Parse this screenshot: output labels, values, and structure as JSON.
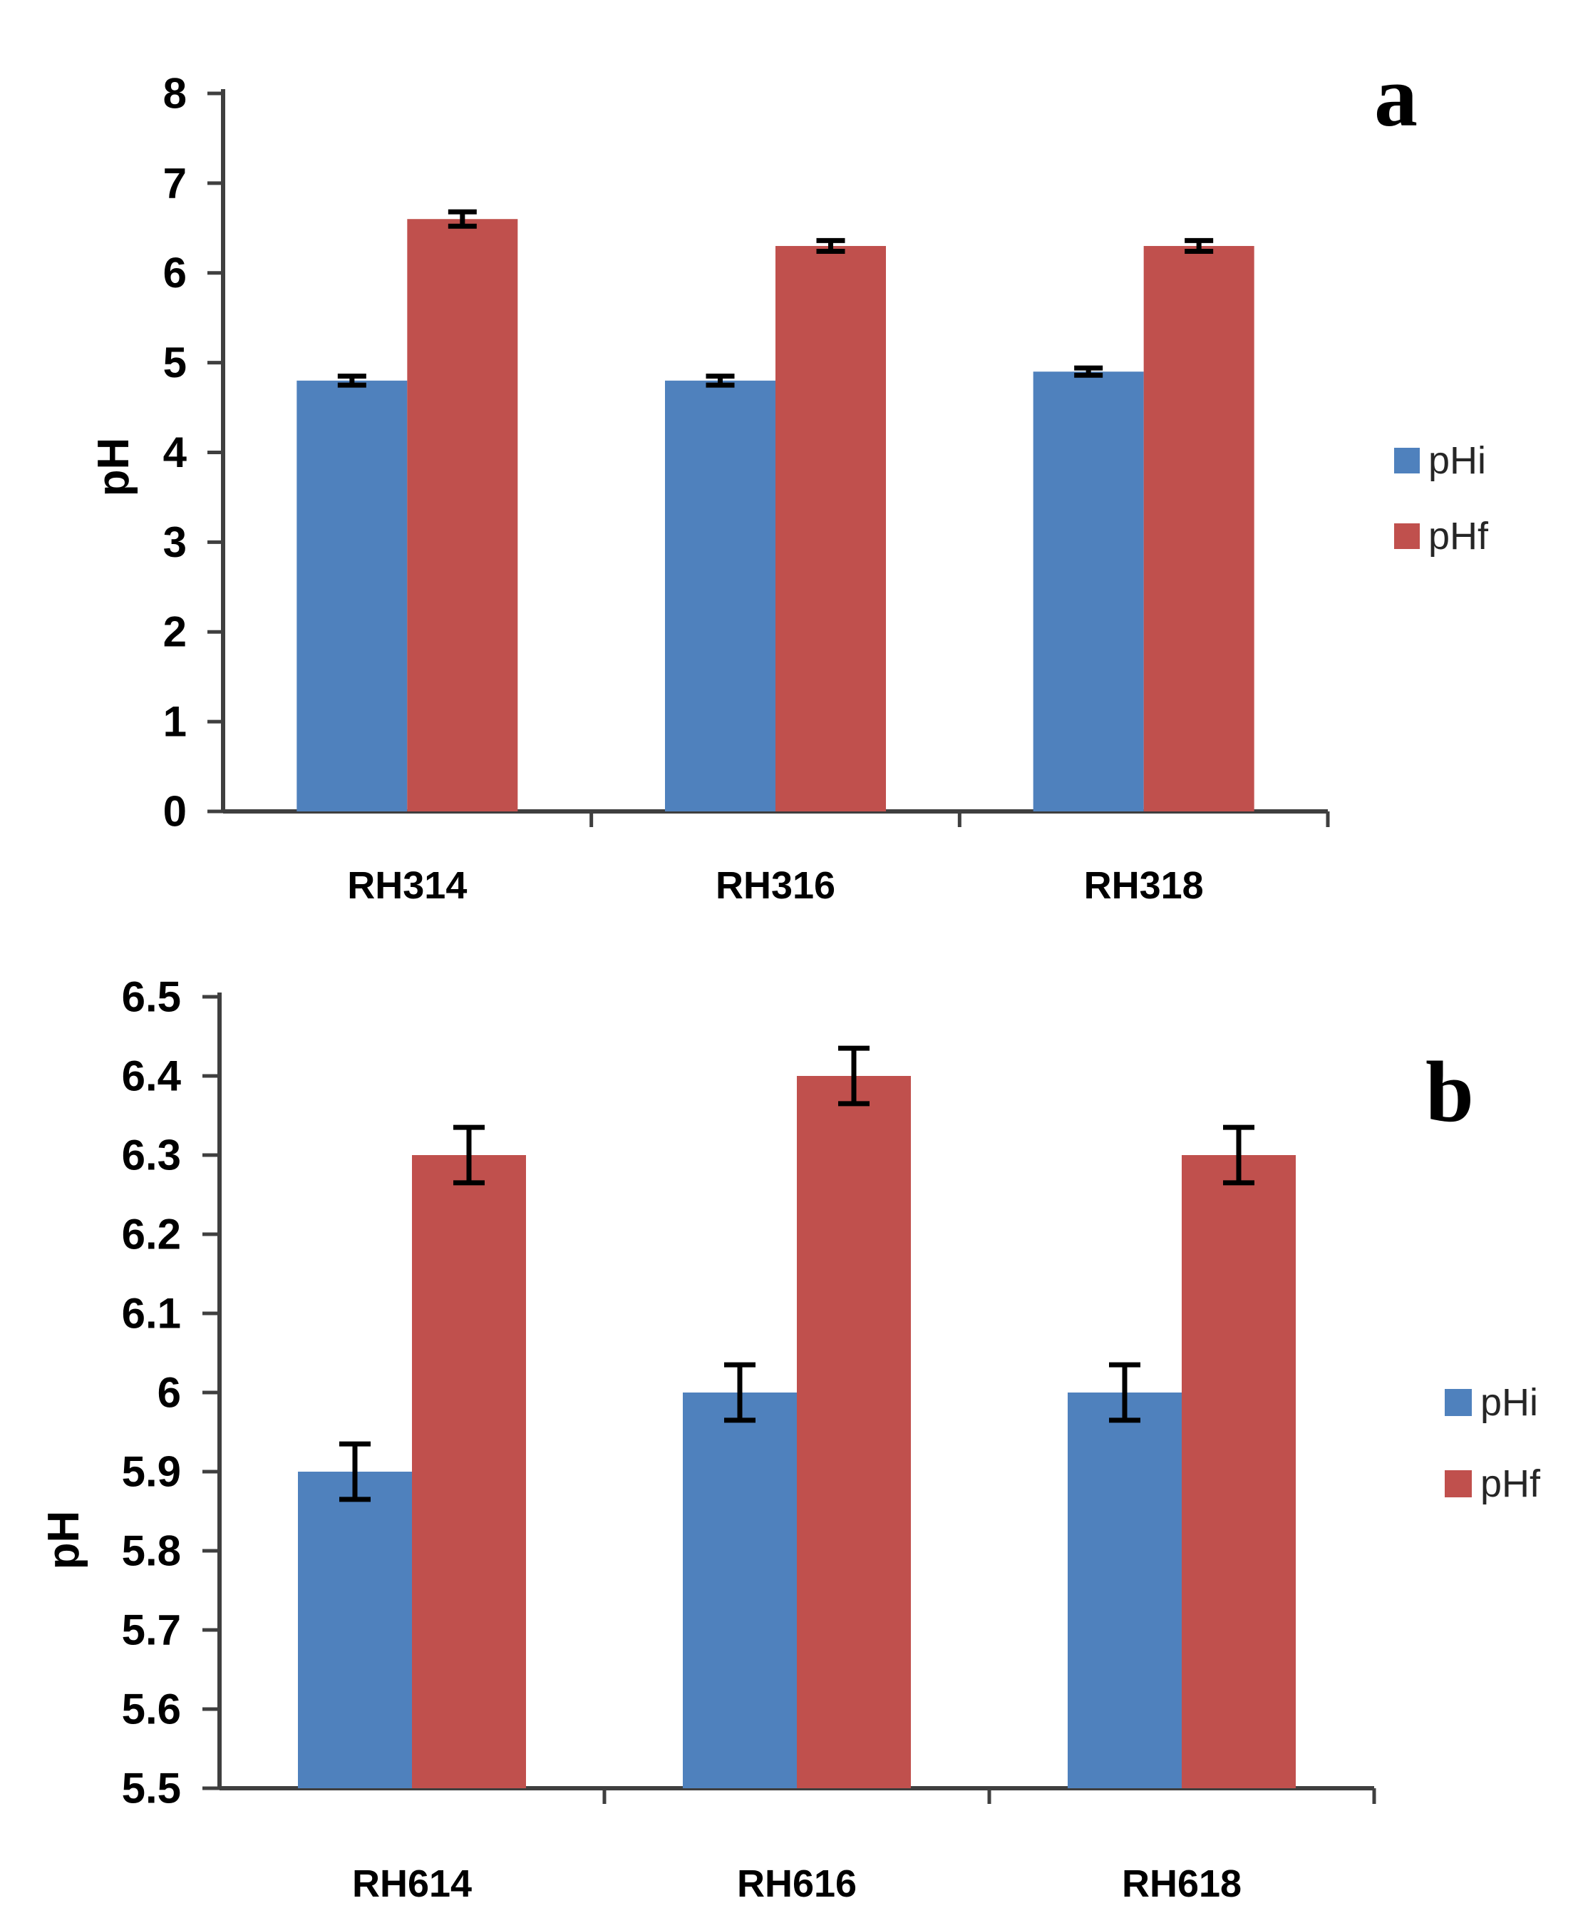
{
  "figure": {
    "background": "#ffffff"
  },
  "colors": {
    "pHi": "#4F81BD",
    "pHf": "#C0504D",
    "axis": "#3F3F3F",
    "error_bar": "#000000",
    "tick_text": "#000000",
    "legend_text": "#262626"
  },
  "chart_data": [
    {
      "type": "bar",
      "panel_label": "a",
      "title": "",
      "xlabel": "",
      "ylabel": "pH",
      "categories": [
        "RH314",
        "RH316",
        "RH318"
      ],
      "series": [
        {
          "name": "pHi",
          "color": "#4F81BD",
          "values": [
            4.8,
            4.8,
            4.9
          ],
          "errors": [
            0.05,
            0.05,
            0.04
          ]
        },
        {
          "name": "pHf",
          "color": "#C0504D",
          "values": [
            6.6,
            6.3,
            6.3
          ],
          "errors": [
            0.08,
            0.06,
            0.06
          ]
        }
      ],
      "ylim": [
        0,
        8
      ],
      "ytick_step": 1,
      "ytick_labels": [
        "0",
        "1",
        "2",
        "3",
        "4",
        "5",
        "6",
        "7",
        "8"
      ],
      "grid": false,
      "legend_position": "right",
      "legend": [
        {
          "label": "pHi",
          "color": "#4F81BD"
        },
        {
          "label": "pHf",
          "color": "#C0504D"
        }
      ]
    },
    {
      "type": "bar",
      "panel_label": "b",
      "title": "",
      "xlabel": "",
      "ylabel": "pH",
      "categories": [
        "RH614",
        "RH616",
        "RH618"
      ],
      "series": [
        {
          "name": "pHi",
          "color": "#4F81BD",
          "values": [
            5.9,
            6.0,
            6.0
          ],
          "errors": [
            0.035,
            0.035,
            0.035
          ]
        },
        {
          "name": "pHf",
          "color": "#C0504D",
          "values": [
            6.3,
            6.4,
            6.3
          ],
          "errors": [
            0.035,
            0.035,
            0.035
          ]
        }
      ],
      "ylim": [
        5.5,
        6.5
      ],
      "ytick_step": 0.1,
      "ytick_labels": [
        "5.5",
        "5.6",
        "5.7",
        "5.8",
        "5.9",
        "6",
        "6.1",
        "6.2",
        "6.3",
        "6.4",
        "6.5"
      ],
      "grid": false,
      "legend_position": "right",
      "legend": [
        {
          "label": "pHi",
          "color": "#4F81BD"
        },
        {
          "label": "pHf",
          "color": "#C0504D"
        }
      ]
    }
  ]
}
